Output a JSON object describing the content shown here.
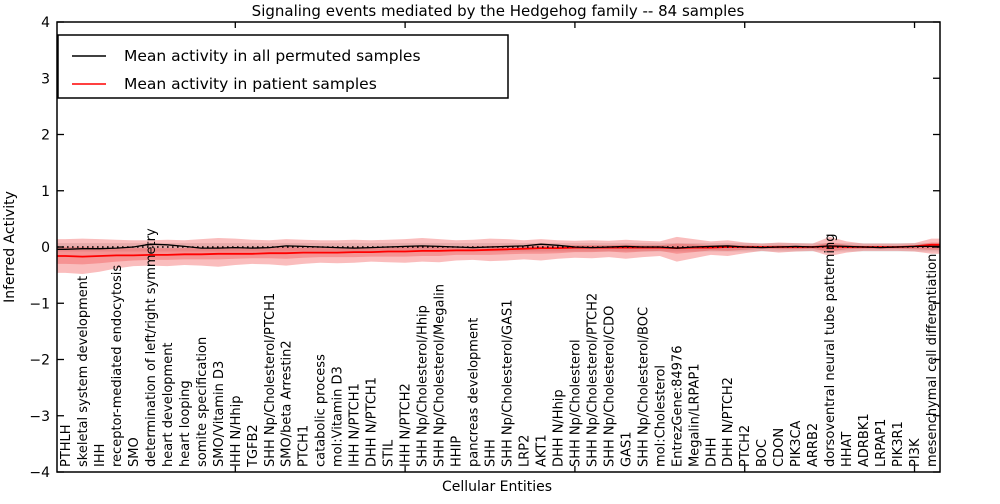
{
  "chart_data": {
    "type": "line",
    "title": "Signaling events mediated by the Hedgehog family -- 84 samples",
    "xlabel": "Cellular Entities",
    "ylabel": "Inferred Activity",
    "ylim": [
      -4,
      4
    ],
    "yticks": [
      -4,
      -3,
      -2,
      -1,
      0,
      1,
      2,
      3,
      4
    ],
    "legend": [
      {
        "label": "Mean activity in all permuted samples",
        "color": "#000000"
      },
      {
        "label": "Mean activity in patient samples",
        "color": "#ff0000"
      }
    ],
    "legend_position": "upper left",
    "grid": false,
    "colors": {
      "permuted_line": "#000000",
      "patient_line": "#ff0000",
      "patient_band": "#ee3333",
      "permuted_band": "#bbbbbb",
      "zero_line": "#000000"
    },
    "categories": [
      "PTHLH",
      "skeletal system development",
      "IHH",
      "receptor-mediated endocytosis",
      "SMO",
      "determination of left/right symmetry",
      "heart development",
      "heart looping",
      "somite specification",
      "SMO/Vitamin D3",
      "IHH N/Hhip",
      "TGFB2",
      "SHH Np/Cholesterol/PTCH1",
      "SMO/beta Arrestin2",
      "PTCH1",
      "catabolic process",
      "mol:Vitamin D3",
      "IHH N/PTCH1",
      "DHH N/PTCH1",
      "STIL",
      "IHH N/PTCH2",
      "SHH Np/Cholesterol/Hhip",
      "SHH Np/Cholesterol/Megalin",
      "HHIP",
      "pancreas development",
      "SHH",
      "SHH Np/Cholesterol/GAS1",
      "LRP2",
      "AKT1",
      "DHH N/Hhip",
      "SHH Np/Cholesterol",
      "SHH Np/Cholesterol/PTCH2",
      "SHH Np/Cholesterol/CDO",
      "GAS1",
      "SHH Np/Cholesterol/BOC",
      "mol:Cholesterol",
      "EntrezGene:84976",
      "Megalin/LRPAP1",
      "DHH",
      "DHH N/PTCH2",
      "PTCH2",
      "BOC",
      "CDON",
      "PIK3CA",
      "ARRB2",
      "dorsoventral neural tube patterning",
      "HHAT",
      "ADRBK1",
      "LRPAP1",
      "PIK3R1",
      "PI3K",
      "mesenchymal cell differentiation"
    ],
    "series": [
      {
        "name": "Mean activity in all permuted samples",
        "values": [
          -0.04,
          -0.03,
          -0.03,
          -0.02,
          0.0,
          0.05,
          0.04,
          0.01,
          -0.02,
          -0.02,
          -0.01,
          -0.02,
          -0.01,
          0.02,
          0.01,
          0.0,
          -0.01,
          -0.02,
          -0.01,
          0.0,
          0.01,
          0.02,
          0.01,
          0.0,
          -0.01,
          0.0,
          0.01,
          0.02,
          0.05,
          0.03,
          0.0,
          -0.01,
          0.0,
          0.01,
          0.0,
          0.0,
          -0.02,
          0.0,
          0.01,
          0.02,
          0.0,
          -0.01,
          0.0,
          0.01,
          0.0,
          0.02,
          0.01,
          0.0,
          -0.01,
          0.0,
          0.01,
          0.01
        ]
      },
      {
        "name": "Mean activity in patient samples",
        "values": [
          -0.16,
          -0.17,
          -0.16,
          -0.15,
          -0.15,
          -0.14,
          -0.14,
          -0.13,
          -0.13,
          -0.12,
          -0.12,
          -0.12,
          -0.11,
          -0.11,
          -0.1,
          -0.1,
          -0.1,
          -0.09,
          -0.09,
          -0.08,
          -0.08,
          -0.07,
          -0.07,
          -0.06,
          -0.06,
          -0.05,
          -0.04,
          -0.03,
          -0.02,
          -0.02,
          -0.01,
          -0.01,
          -0.01,
          -0.01,
          -0.01,
          -0.01,
          -0.02,
          -0.01,
          -0.01,
          0.0,
          0.0,
          0.0,
          0.0,
          0.0,
          0.0,
          0.01,
          0.0,
          0.0,
          0.0,
          0.0,
          0.01,
          0.04
        ]
      }
    ],
    "bands": {
      "patient_outer_upper": [
        0.14,
        0.15,
        0.14,
        0.13,
        0.12,
        0.12,
        0.13,
        0.12,
        0.14,
        0.16,
        0.15,
        0.13,
        0.12,
        0.14,
        0.13,
        0.12,
        0.12,
        0.13,
        0.12,
        0.13,
        0.14,
        0.16,
        0.14,
        0.12,
        0.13,
        0.15,
        0.14,
        0.12,
        0.14,
        0.12,
        0.11,
        0.12,
        0.11,
        0.13,
        0.11,
        0.1,
        0.18,
        0.14,
        0.1,
        0.12,
        0.08,
        0.06,
        0.08,
        0.07,
        0.06,
        0.18,
        0.1,
        0.06,
        0.06,
        0.06,
        0.07,
        0.15
      ],
      "patient_outer_lower": [
        -0.46,
        -0.48,
        -0.44,
        -0.38,
        -0.34,
        -0.33,
        -0.34,
        -0.32,
        -0.33,
        -0.35,
        -0.32,
        -0.3,
        -0.31,
        -0.33,
        -0.3,
        -0.28,
        -0.29,
        -0.28,
        -0.26,
        -0.27,
        -0.28,
        -0.26,
        -0.27,
        -0.24,
        -0.23,
        -0.25,
        -0.24,
        -0.22,
        -0.24,
        -0.21,
        -0.19,
        -0.2,
        -0.18,
        -0.21,
        -0.18,
        -0.16,
        -0.26,
        -0.2,
        -0.14,
        -0.16,
        -0.11,
        -0.07,
        -0.1,
        -0.08,
        -0.07,
        -0.16,
        -0.1,
        -0.07,
        -0.07,
        -0.07,
        -0.08,
        -0.12
      ],
      "patient_inner_upper": [
        0.0,
        0.0,
        -0.01,
        -0.02,
        -0.02,
        -0.02,
        -0.02,
        -0.02,
        -0.01,
        0.0,
        -0.01,
        -0.02,
        -0.01,
        0.0,
        -0.01,
        -0.01,
        -0.01,
        0.0,
        -0.01,
        0.0,
        0.01,
        0.02,
        0.01,
        0.0,
        0.01,
        0.02,
        0.02,
        0.02,
        0.03,
        0.03,
        0.03,
        0.03,
        0.03,
        0.04,
        0.03,
        0.03,
        0.06,
        0.05,
        0.03,
        0.04,
        0.03,
        0.02,
        0.03,
        0.02,
        0.02,
        0.08,
        0.04,
        0.02,
        0.02,
        0.02,
        0.03,
        0.08
      ],
      "patient_inner_lower": [
        -0.3,
        -0.31,
        -0.29,
        -0.26,
        -0.24,
        -0.23,
        -0.23,
        -0.22,
        -0.22,
        -0.22,
        -0.21,
        -0.2,
        -0.2,
        -0.21,
        -0.19,
        -0.18,
        -0.18,
        -0.18,
        -0.17,
        -0.17,
        -0.17,
        -0.16,
        -0.16,
        -0.14,
        -0.14,
        -0.14,
        -0.13,
        -0.12,
        -0.12,
        -0.11,
        -0.09,
        -0.09,
        -0.08,
        -0.1,
        -0.08,
        -0.07,
        -0.12,
        -0.09,
        -0.06,
        -0.07,
        -0.05,
        -0.03,
        -0.04,
        -0.04,
        -0.03,
        -0.08,
        -0.04,
        -0.03,
        -0.03,
        -0.03,
        -0.04,
        -0.05
      ],
      "permuted_upper": 0.07,
      "permuted_lower": -0.08
    },
    "zero_line": 0
  }
}
